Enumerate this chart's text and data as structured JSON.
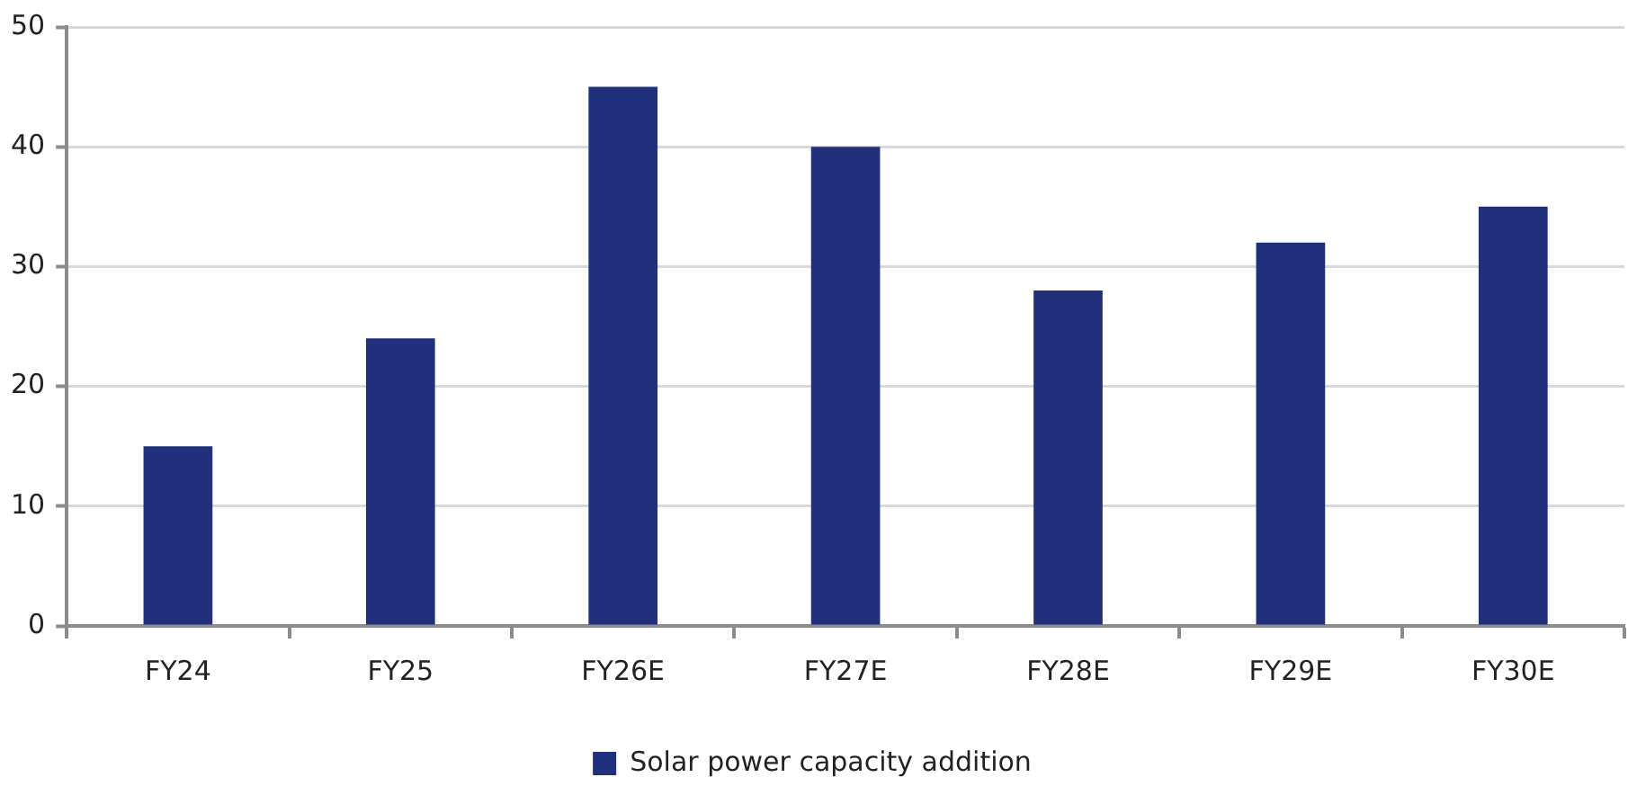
{
  "chart_data": {
    "type": "bar",
    "categories": [
      "FY24",
      "FY25",
      "FY26E",
      "FY27E",
      "FY28E",
      "FY29E",
      "FY30E"
    ],
    "series": [
      {
        "name": "Solar power capacity addition",
        "color": "#21307c",
        "values": [
          15,
          24,
          45,
          40,
          28,
          32,
          35
        ]
      }
    ],
    "ylim": [
      0,
      50
    ],
    "yticks": [
      0,
      10,
      20,
      30,
      40,
      50
    ],
    "grid": "y",
    "legend": "bottom"
  }
}
